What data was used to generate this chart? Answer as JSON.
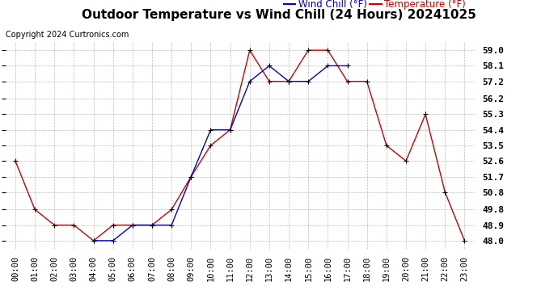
{
  "title": "Outdoor Temperature vs Wind Chill (24 Hours) 20241025",
  "copyright": "Copyright 2024 Curtronics.com",
  "legend_wind_chill": "Wind Chill (°F)",
  "legend_temperature": "Temperature (°F)",
  "hours": [
    "00:00",
    "01:00",
    "02:00",
    "03:00",
    "04:00",
    "05:00",
    "06:00",
    "07:00",
    "08:00",
    "09:00",
    "10:00",
    "11:00",
    "12:00",
    "13:00",
    "14:00",
    "15:00",
    "16:00",
    "17:00",
    "18:00",
    "19:00",
    "20:00",
    "21:00",
    "22:00",
    "23:00"
  ],
  "temperature": [
    52.6,
    49.8,
    48.9,
    48.9,
    48.0,
    48.9,
    48.9,
    48.9,
    49.8,
    51.7,
    53.5,
    54.4,
    59.0,
    57.2,
    57.2,
    59.0,
    59.0,
    57.2,
    57.2,
    53.5,
    52.6,
    55.3,
    50.8,
    48.0
  ],
  "wind_chill": [
    null,
    null,
    null,
    null,
    48.0,
    48.0,
    48.9,
    48.9,
    48.9,
    51.7,
    54.4,
    54.4,
    57.2,
    58.1,
    57.2,
    57.2,
    58.1,
    58.1,
    null,
    null,
    null,
    null,
    null,
    null
  ],
  "temp_color": "#cc0000",
  "wind_chill_color": "#0000cc",
  "marker_color": "#000000",
  "ylim_min": 47.55,
  "ylim_max": 59.45,
  "yticks": [
    48.0,
    48.9,
    49.8,
    50.8,
    51.7,
    52.6,
    53.5,
    54.4,
    55.3,
    56.2,
    57.2,
    58.1,
    59.0
  ],
  "background_color": "#ffffff",
  "grid_color": "#aaaaaa",
  "title_fontsize": 11,
  "copyright_fontsize": 7,
  "legend_fontsize": 8.5,
  "tick_fontsize": 7.5,
  "ylabel_right_fontsize": 8
}
